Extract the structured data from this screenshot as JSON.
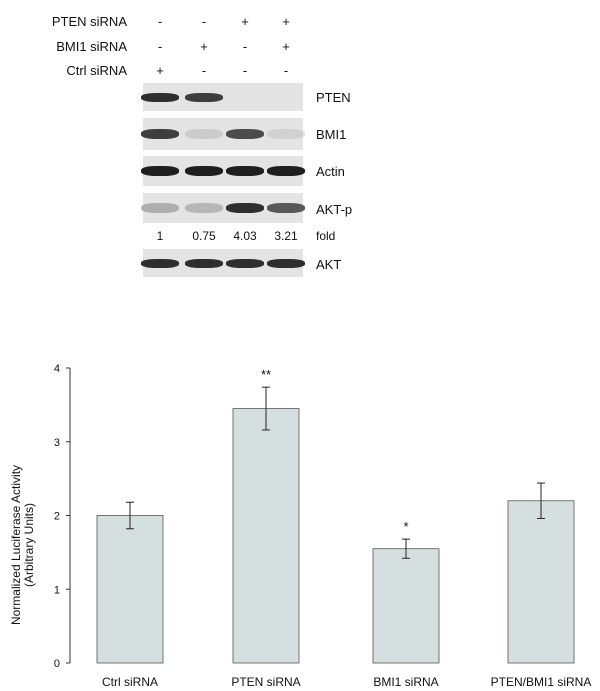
{
  "figure": {
    "western_blot": {
      "conditions": [
        {
          "label": "PTEN siRNA",
          "signs": [
            "-",
            "-",
            "+",
            "+"
          ]
        },
        {
          "label": "BMI1  siRNA",
          "signs": [
            "-",
            "+",
            "-",
            "+"
          ]
        },
        {
          "label": "Ctrl siRNA",
          "signs": [
            "+",
            "-",
            "-",
            "-"
          ]
        }
      ],
      "panels": [
        {
          "label": "PTEN",
          "intensities": [
            0.9,
            0.85,
            0.0,
            0.0
          ]
        },
        {
          "label": "BMI1",
          "intensities": [
            0.85,
            0.15,
            0.8,
            0.1
          ]
        },
        {
          "label": "Actin",
          "intensities": [
            0.95,
            0.95,
            0.95,
            0.95
          ]
        },
        {
          "label": "AKT-p",
          "intensities": [
            0.35,
            0.3,
            0.9,
            0.75
          ]
        },
        {
          "label": "AKT",
          "intensities": [
            0.9,
            0.9,
            0.9,
            0.9
          ]
        }
      ],
      "fold_values": [
        "1",
        "0.75",
        "4.03",
        "3.21"
      ],
      "fold_label": "fold"
    }
  },
  "chart_data": {
    "type": "bar",
    "categories": [
      "Ctrl siRNA",
      "PTEN siRNA",
      "BMI1 siRNA",
      "PTEN/BMI1 siRNA"
    ],
    "values": [
      2.0,
      3.45,
      1.55,
      2.2
    ],
    "errors": [
      0.18,
      0.29,
      0.13,
      0.24
    ],
    "annotations": [
      "",
      "**",
      "*",
      ""
    ],
    "ylabel_line1": "Normalized Luciferase Activity",
    "ylabel_line2": "(Arbitrary Units)",
    "ylim": [
      0,
      4
    ],
    "yticks": [
      "0",
      "1",
      "2",
      "3",
      "4"
    ],
    "bar_color": "#d6dfdf",
    "grid": false
  }
}
